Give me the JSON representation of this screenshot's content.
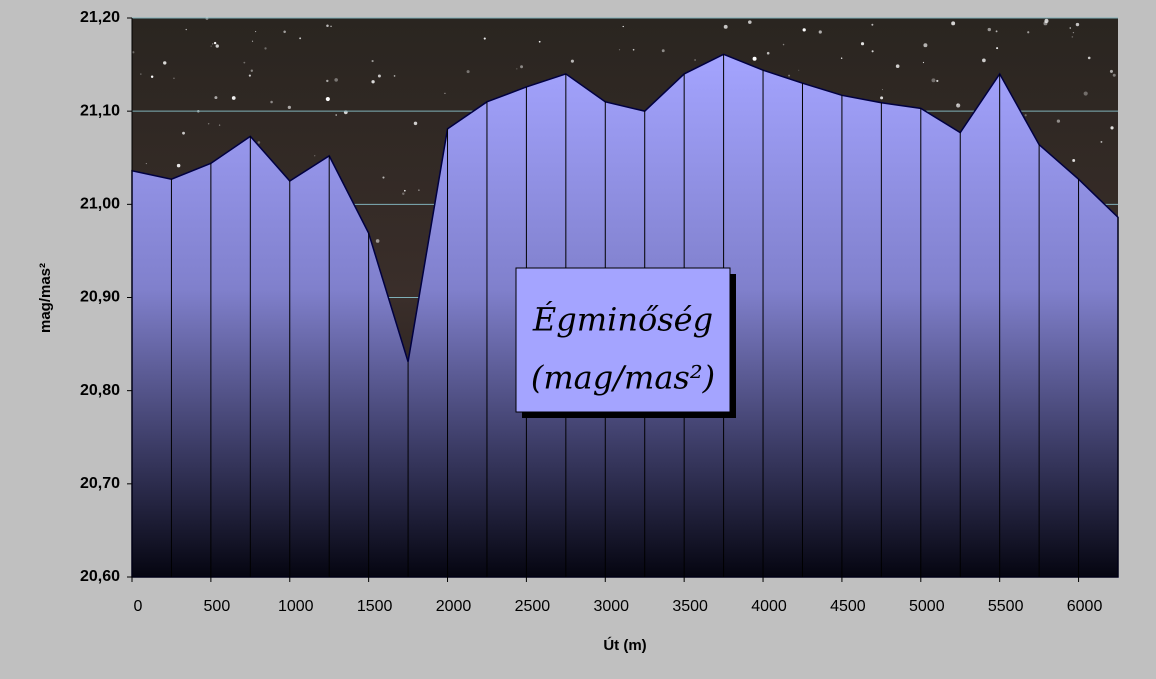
{
  "chart_data": {
    "type": "area",
    "x": [
      0,
      250,
      500,
      750,
      1000,
      1250,
      1500,
      1750,
      2000,
      2250,
      2500,
      2750,
      3000,
      3250,
      3500,
      3750,
      4000,
      4250,
      4500,
      4750,
      5000,
      5250,
      5500,
      5750,
      6000,
      6250
    ],
    "series": [
      {
        "name": "mag/mas²",
        "color": "#a4a4ff",
        "values": [
          21.036,
          21.027,
          21.044,
          21.073,
          21.025,
          21.052,
          20.969,
          20.831,
          21.081,
          21.11,
          21.126,
          21.14,
          21.11,
          21.1,
          21.14,
          21.161,
          21.144,
          21.13,
          21.117,
          21.109,
          21.103,
          21.077,
          21.14,
          21.064,
          21.027,
          20.986
        ]
      }
    ],
    "xlim": [
      0,
      6250
    ],
    "xticks": [
      0,
      500,
      1000,
      1500,
      2000,
      2500,
      3000,
      3500,
      4000,
      4500,
      5000,
      5500,
      6000
    ],
    "ylim": [
      20.6,
      21.2
    ],
    "yticks": [
      {
        "value": 20.6,
        "label": "20,60"
      },
      {
        "value": 20.7,
        "label": "20,70"
      },
      {
        "value": 20.8,
        "label": "20,80"
      },
      {
        "value": 20.9,
        "label": "20,90"
      },
      {
        "value": 21.0,
        "label": "21,00"
      },
      {
        "value": 21.1,
        "label": "21,10"
      },
      {
        "value": 21.2,
        "label": "21,20"
      }
    ],
    "xlabel": "Út (m)",
    "ylabel": "mag/mas²",
    "annotation": [
      "Égminőség",
      "(mag/mas²)"
    ],
    "grid": true
  }
}
